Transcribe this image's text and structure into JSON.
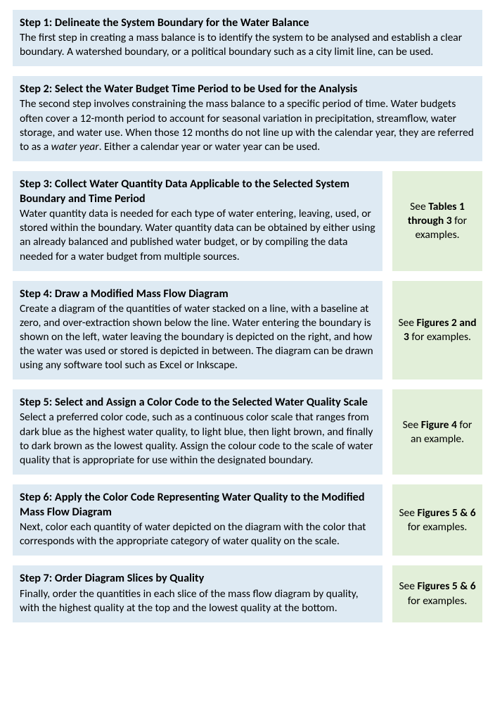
{
  "colors": {
    "step_bg": "#deeaf3",
    "side_bg": "#e2efd9",
    "text": "#000000",
    "page_bg": "#ffffff"
  },
  "steps": [
    {
      "title": "Step 1: Delineate the System Boundary for the Water Balance",
      "body_html": "The first step in creating a mass balance is to identify the system to be analysed and establish a clear boundary. A watershed boundary, or a political boundary such as a city limit line, can be used.",
      "side_html": null
    },
    {
      "title": "Step 2: Select the Water Budget Time Period to be Used for the Analysis",
      "body_html": "The second step involves constraining the mass balance to a specific period of time. Water budgets often cover a 12-month period to account for seasonal variation in precipitation, streamflow, water storage, and water use. When those 12 months do not line up with the calendar year, they are referred to as a <em>water year</em>. Either a calendar year or water year can be used.",
      "side_html": null
    },
    {
      "title": "Step 3: Collect Water Quantity Data Applicable to the Selected System Boundary and Time Period",
      "body_html": "Water quantity data is needed for each type of water entering, leaving, used, or stored within the boundary. Water quantity data can be obtained by either using an already balanced and published water budget, or by compiling the data needed for a water budget from multiple sources.",
      "side_html": "See <b>Tables 1 through 3</b> for examples."
    },
    {
      "title": "Step 4: Draw a Modified Mass Flow Diagram",
      "body_html": "Create a diagram of the quantities of water stacked on a line, with a baseline at zero, and over-extraction shown below the line. Water entering the boundary is shown on the left, water leaving the boundary is depicted on the right, and how the water was used or stored is depicted in between. The diagram can be drawn using any software tool such as Excel or Inkscape.",
      "side_html": "See <b>Figures 2 and 3</b> for examples."
    },
    {
      "title": "Step 5: Select and Assign a Color Code to the Selected Water Quality Scale",
      "body_html": "Select a preferred color code, such as a continuous color scale that ranges from dark blue as the highest water quality, to light blue, then light brown, and finally to dark brown as the lowest quality. Assign the colour code to the scale of water quality that is appropriate for use within the designated boundary.",
      "side_html": "See <b>Figure 4</b> for an example."
    },
    {
      "title": "Step 6: Apply the Color Code Representing Water Quality to the Modified Mass Flow Diagram",
      "body_html": "Next, color each quantity of water depicted on the diagram with the color that corresponds with the appropriate category of water quality on the scale.",
      "side_html": "See <b>Figures 5 & 6</b><br>for examples."
    },
    {
      "title": "Step 7: Order Diagram Slices by Quality",
      "body_html": "Finally, order the quantities in each slice of the mass flow diagram by quality, with the highest quality at the top and the lowest quality at the bottom.",
      "side_html": "See <b>Figures 5 & 6</b> for examples."
    }
  ]
}
